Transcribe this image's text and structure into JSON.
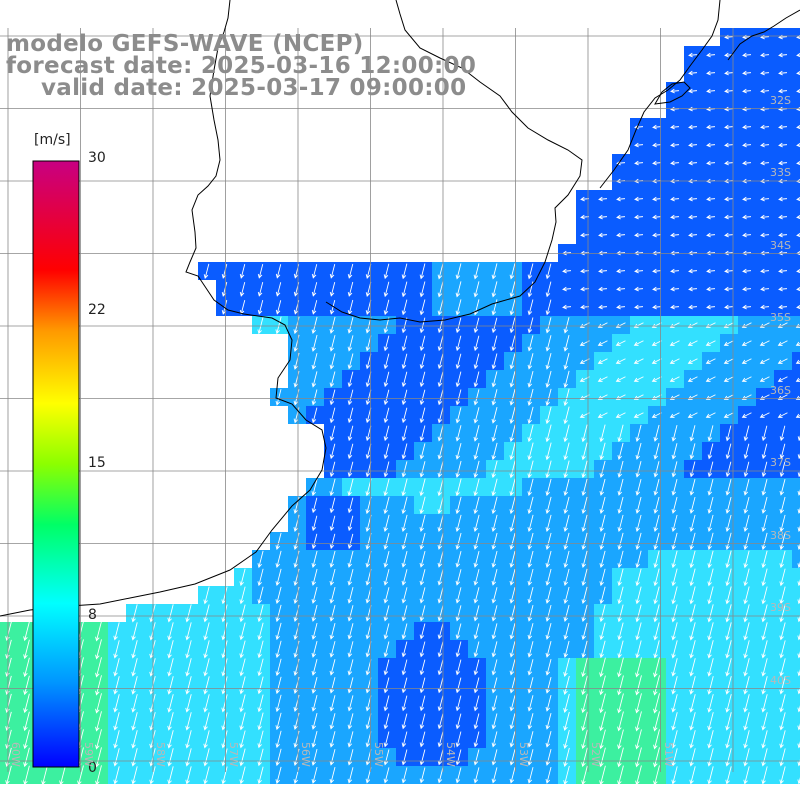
{
  "title": {
    "line1": "modelo GEFS-WAVE (NCEP)",
    "line2": "forecast date: 2025-03-16 12:00:00",
    "line3": "valid date: 2025-03-17 09:00:00"
  },
  "colorbar": {
    "unit": "[m/s]",
    "ticks": [
      "30",
      "22",
      "15",
      "8",
      "0"
    ],
    "colors": [
      "#0000ff",
      "#0096ff",
      "#00e6ff",
      "#00ff66",
      "#8cff00",
      "#ffff00",
      "#ff9900",
      "#ff0000",
      "#ff0066",
      "#c80082"
    ]
  },
  "grid": {
    "lat_labels": [
      "32S",
      "33S",
      "34S",
      "35S",
      "36S",
      "37S",
      "38S",
      "39S",
      "40S"
    ],
    "lon_labels": [
      "60W",
      "59W",
      "58W",
      "57W",
      "56W",
      "55W",
      "54W",
      "53W",
      "52W",
      "51W"
    ]
  },
  "colors": {
    "ocean_low": "#0a5cff",
    "ocean_mid": "#1aa6ff",
    "ocean_high": "#33e0ff",
    "ocean_peak": "#3cf0a0",
    "land": "#ffffff",
    "coast": "#000000",
    "grid": "#888888",
    "arrow": "#ffffff"
  }
}
